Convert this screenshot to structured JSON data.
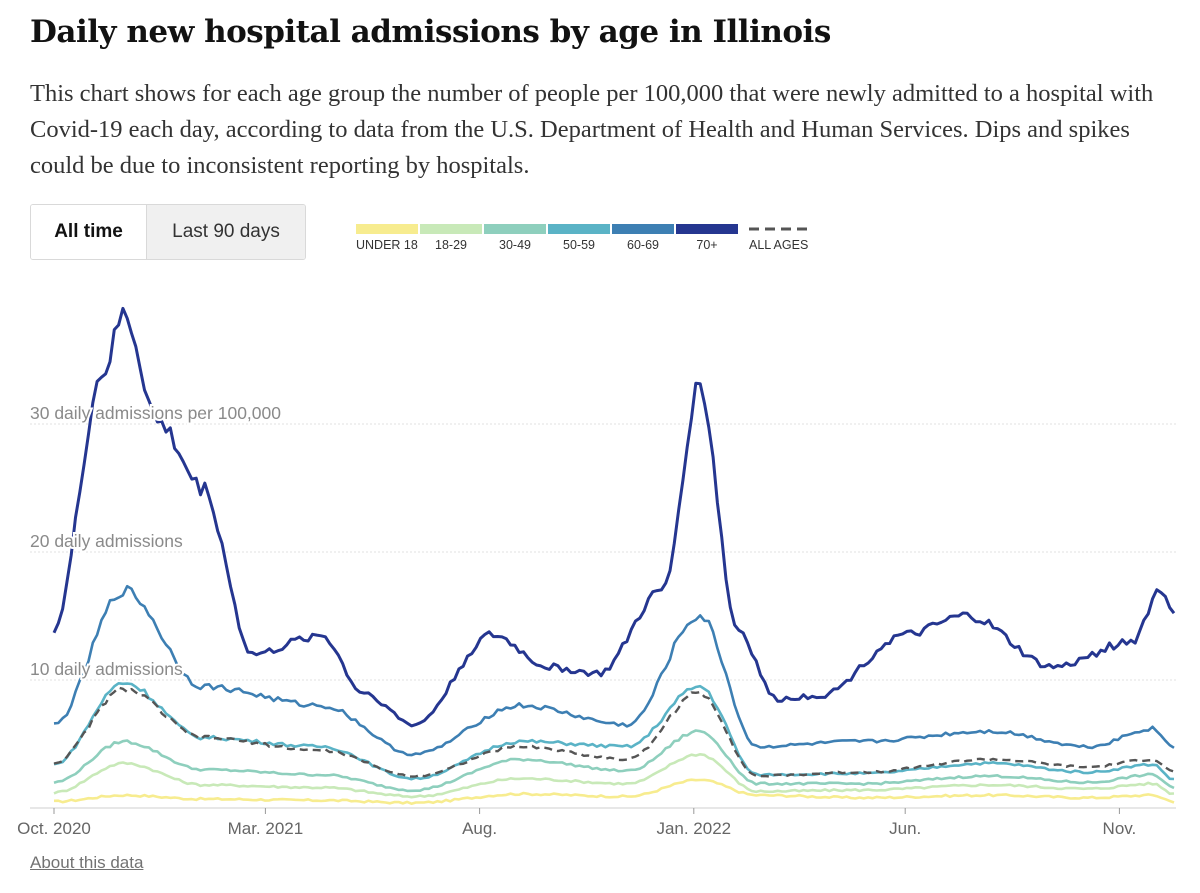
{
  "header": {
    "title": "Daily new hospital admissions by age in Illinois",
    "subtitle": "This chart shows for each age group the number of people per 100,000 that were newly admitted to a hospital with Covid-19 each day, according to data from the U.S. Department of Health and Human Services. Dips and spikes could be due to inconsistent reporting by hospitals."
  },
  "controls": {
    "all_time": "All time",
    "last_90": "Last 90 days"
  },
  "footer": {
    "about": "About this data"
  },
  "chart_data": {
    "type": "line",
    "title": "Daily new hospital admissions by age in Illinois",
    "ylabel": "daily admissions per 100,000",
    "ylim": [
      0,
      40
    ],
    "x_start": "2020-10-01",
    "x_end": "2022-12-10",
    "yticks": [
      {
        "value": 10,
        "label": "10 daily admissions"
      },
      {
        "value": 20,
        "label": "20 daily admissions"
      },
      {
        "value": 30,
        "label": "30 daily admissions per 100,000"
      }
    ],
    "xticks": [
      {
        "date": "2020-10-01",
        "label": "Oct. 2020"
      },
      {
        "date": "2021-03-01",
        "label": "Mar. 2021"
      },
      {
        "date": "2021-08-01",
        "label": "Aug."
      },
      {
        "date": "2022-01-01",
        "label": "Jan. 2022"
      },
      {
        "date": "2022-06-01",
        "label": "Jun."
      },
      {
        "date": "2022-11-01",
        "label": "Nov."
      }
    ],
    "series": [
      {
        "name": "UNDER 18",
        "color": "#f7ec8f",
        "dashed": false,
        "points": [
          [
            "2020-10-01",
            0.5
          ],
          [
            "2020-11-20",
            1.0
          ],
          [
            "2021-01-15",
            0.7
          ],
          [
            "2021-04-10",
            0.6
          ],
          [
            "2021-06-15",
            0.4
          ],
          [
            "2021-08-30",
            1.1
          ],
          [
            "2021-11-15",
            0.9
          ],
          [
            "2022-01-05",
            2.2
          ],
          [
            "2022-02-15",
            1.0
          ],
          [
            "2022-05-01",
            0.8
          ],
          [
            "2022-08-01",
            1.0
          ],
          [
            "2022-10-10",
            0.8
          ],
          [
            "2022-11-25",
            1.0
          ],
          [
            "2022-12-10",
            0.5
          ]
        ]
      },
      {
        "name": "18-29",
        "color": "#c8e9b8",
        "dashed": false,
        "points": [
          [
            "2020-10-01",
            1.2
          ],
          [
            "2020-11-20",
            3.5
          ],
          [
            "2021-01-15",
            1.8
          ],
          [
            "2021-04-10",
            1.6
          ],
          [
            "2021-06-15",
            0.9
          ],
          [
            "2021-08-30",
            2.3
          ],
          [
            "2021-11-15",
            1.9
          ],
          [
            "2022-01-05",
            4.2
          ],
          [
            "2022-02-15",
            1.3
          ],
          [
            "2022-05-01",
            1.4
          ],
          [
            "2022-08-01",
            1.8
          ],
          [
            "2022-10-10",
            1.5
          ],
          [
            "2022-11-25",
            1.9
          ],
          [
            "2022-12-10",
            1.1
          ]
        ]
      },
      {
        "name": "30-49",
        "color": "#8ecfbd",
        "dashed": false,
        "points": [
          [
            "2020-10-01",
            2.0
          ],
          [
            "2020-11-20",
            5.2
          ],
          [
            "2021-01-15",
            3.0
          ],
          [
            "2021-04-10",
            2.6
          ],
          [
            "2021-06-15",
            1.4
          ],
          [
            "2021-08-30",
            3.8
          ],
          [
            "2021-11-15",
            2.9
          ],
          [
            "2022-01-05",
            6.0
          ],
          [
            "2022-02-15",
            1.9
          ],
          [
            "2022-05-01",
            1.9
          ],
          [
            "2022-08-01",
            2.5
          ],
          [
            "2022-10-10",
            2.0
          ],
          [
            "2022-11-25",
            2.6
          ],
          [
            "2022-12-10",
            1.6
          ]
        ]
      },
      {
        "name": "50-59",
        "color": "#5ab3c6",
        "dashed": false,
        "points": [
          [
            "2020-10-01",
            3.4
          ],
          [
            "2020-11-20",
            9.8
          ],
          [
            "2021-01-15",
            5.5
          ],
          [
            "2021-04-10",
            4.8
          ],
          [
            "2021-06-15",
            2.3
          ],
          [
            "2021-08-30",
            5.2
          ],
          [
            "2021-11-15",
            4.8
          ],
          [
            "2022-01-05",
            9.5
          ],
          [
            "2022-02-15",
            2.6
          ],
          [
            "2022-05-01",
            2.7
          ],
          [
            "2022-08-01",
            3.5
          ],
          [
            "2022-10-10",
            2.8
          ],
          [
            "2022-11-25",
            3.4
          ],
          [
            "2022-12-10",
            2.2
          ]
        ]
      },
      {
        "name": "60-69",
        "color": "#3d7fb3",
        "dashed": false,
        "points": [
          [
            "2020-10-01",
            6.5
          ],
          [
            "2020-11-20",
            17.0
          ],
          [
            "2021-01-15",
            9.5
          ],
          [
            "2021-04-10",
            8.0
          ],
          [
            "2021-06-15",
            4.2
          ],
          [
            "2021-08-30",
            8.0
          ],
          [
            "2021-11-15",
            6.5
          ],
          [
            "2022-01-05",
            15.0
          ],
          [
            "2022-02-15",
            4.8
          ],
          [
            "2022-05-01",
            5.2
          ],
          [
            "2022-08-01",
            6.0
          ],
          [
            "2022-10-10",
            4.8
          ],
          [
            "2022-11-25",
            6.2
          ],
          [
            "2022-12-10",
            4.7
          ]
        ]
      },
      {
        "name": "70+",
        "color": "#253690",
        "dashed": false,
        "points": [
          [
            "2020-10-01",
            14.0
          ],
          [
            "2020-11-05",
            34.0
          ],
          [
            "2020-11-20",
            38.5
          ],
          [
            "2020-12-15",
            30.0
          ],
          [
            "2021-01-15",
            25.0
          ],
          [
            "2021-02-20",
            12.0
          ],
          [
            "2021-04-10",
            13.5
          ],
          [
            "2021-05-10",
            9.0
          ],
          [
            "2021-06-15",
            6.5
          ],
          [
            "2021-08-10",
            13.5
          ],
          [
            "2021-09-20",
            11.0
          ],
          [
            "2021-10-25",
            10.5
          ],
          [
            "2021-12-10",
            17.0
          ],
          [
            "2022-01-05",
            33.0
          ],
          [
            "2022-02-01",
            14.0
          ],
          [
            "2022-03-01",
            8.5
          ],
          [
            "2022-04-01",
            8.8
          ],
          [
            "2022-06-01",
            13.5
          ],
          [
            "2022-07-15",
            15.0
          ],
          [
            "2022-09-15",
            11.0
          ],
          [
            "2022-11-10",
            13.0
          ],
          [
            "2022-11-30",
            17.0
          ],
          [
            "2022-12-10",
            15.5
          ]
        ]
      },
      {
        "name": "ALL AGES",
        "color": "#555555",
        "dashed": true,
        "points": [
          [
            "2020-10-01",
            3.5
          ],
          [
            "2020-11-20",
            9.3
          ],
          [
            "2021-01-15",
            5.5
          ],
          [
            "2021-04-10",
            4.5
          ],
          [
            "2021-06-15",
            2.5
          ],
          [
            "2021-08-30",
            4.8
          ],
          [
            "2021-11-15",
            3.8
          ],
          [
            "2022-01-05",
            9.0
          ],
          [
            "2022-02-15",
            2.5
          ],
          [
            "2022-05-01",
            2.8
          ],
          [
            "2022-08-01",
            3.8
          ],
          [
            "2022-10-10",
            3.2
          ],
          [
            "2022-11-25",
            3.8
          ],
          [
            "2022-12-10",
            2.8
          ]
        ]
      }
    ]
  }
}
